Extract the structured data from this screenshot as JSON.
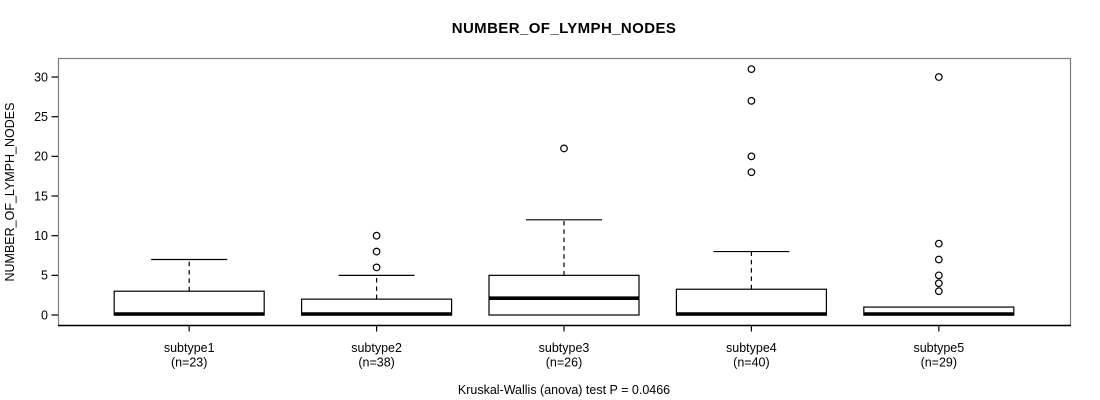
{
  "figure": {
    "title": "NUMBER_OF_LYMPH_NODES",
    "y_axis_label": "NUMBER_OF_LYMPH_NODES",
    "footnote": "Kruskal-Wallis (anova) test P = 0.0466"
  },
  "chart_data": {
    "type": "boxplot",
    "title": "NUMBER_OF_LYMPH_NODES",
    "xlabel": "",
    "ylabel": "NUMBER_OF_LYMPH_NODES",
    "footnote": "Kruskal-Wallis (anova) test P = 0.0466",
    "categories": [
      "subtype1",
      "subtype2",
      "subtype3",
      "subtype4",
      "subtype5"
    ],
    "category_sublabels": [
      "(n=23)",
      "(n=38)",
      "(n=26)",
      "(n=40)",
      "(n=29)"
    ],
    "sample_sizes": [
      23,
      38,
      26,
      40,
      29
    ],
    "yticks": [
      0,
      5,
      10,
      15,
      20,
      25,
      30
    ],
    "ylim": [
      -1.26,
      32.4
    ],
    "grid": false,
    "legend": "none",
    "boxes": [
      {
        "label": "subtype1",
        "n": 23,
        "q1": 0,
        "median": 0,
        "q3": 3,
        "whisker_low": 0,
        "whisker_high": 7,
        "outliers": []
      },
      {
        "label": "subtype2",
        "n": 38,
        "q1": 0,
        "median": 0,
        "q3": 2,
        "whisker_low": 0,
        "whisker_high": 5,
        "outliers": [
          6,
          8,
          10
        ]
      },
      {
        "label": "subtype3",
        "n": 26,
        "q1": 0,
        "median": 2,
        "q3": 5,
        "whisker_low": 0,
        "whisker_high": 12,
        "outliers": [
          21
        ]
      },
      {
        "label": "subtype4",
        "n": 40,
        "q1": 0,
        "median": 0,
        "q3": 3.25,
        "whisker_low": 0,
        "whisker_high": 8,
        "outliers": [
          18,
          20,
          27,
          31
        ]
      },
      {
        "label": "subtype5",
        "n": 29,
        "q1": 0,
        "median": 0,
        "q3": 1,
        "whisker_low": 0,
        "whisker_high": 1,
        "outliers": [
          3,
          4,
          5,
          7,
          9,
          30
        ]
      }
    ],
    "colors": {
      "line": "#000000",
      "box_fill": "#ffffff",
      "frame": "#7e7e7e",
      "background": "#ffffff"
    }
  }
}
